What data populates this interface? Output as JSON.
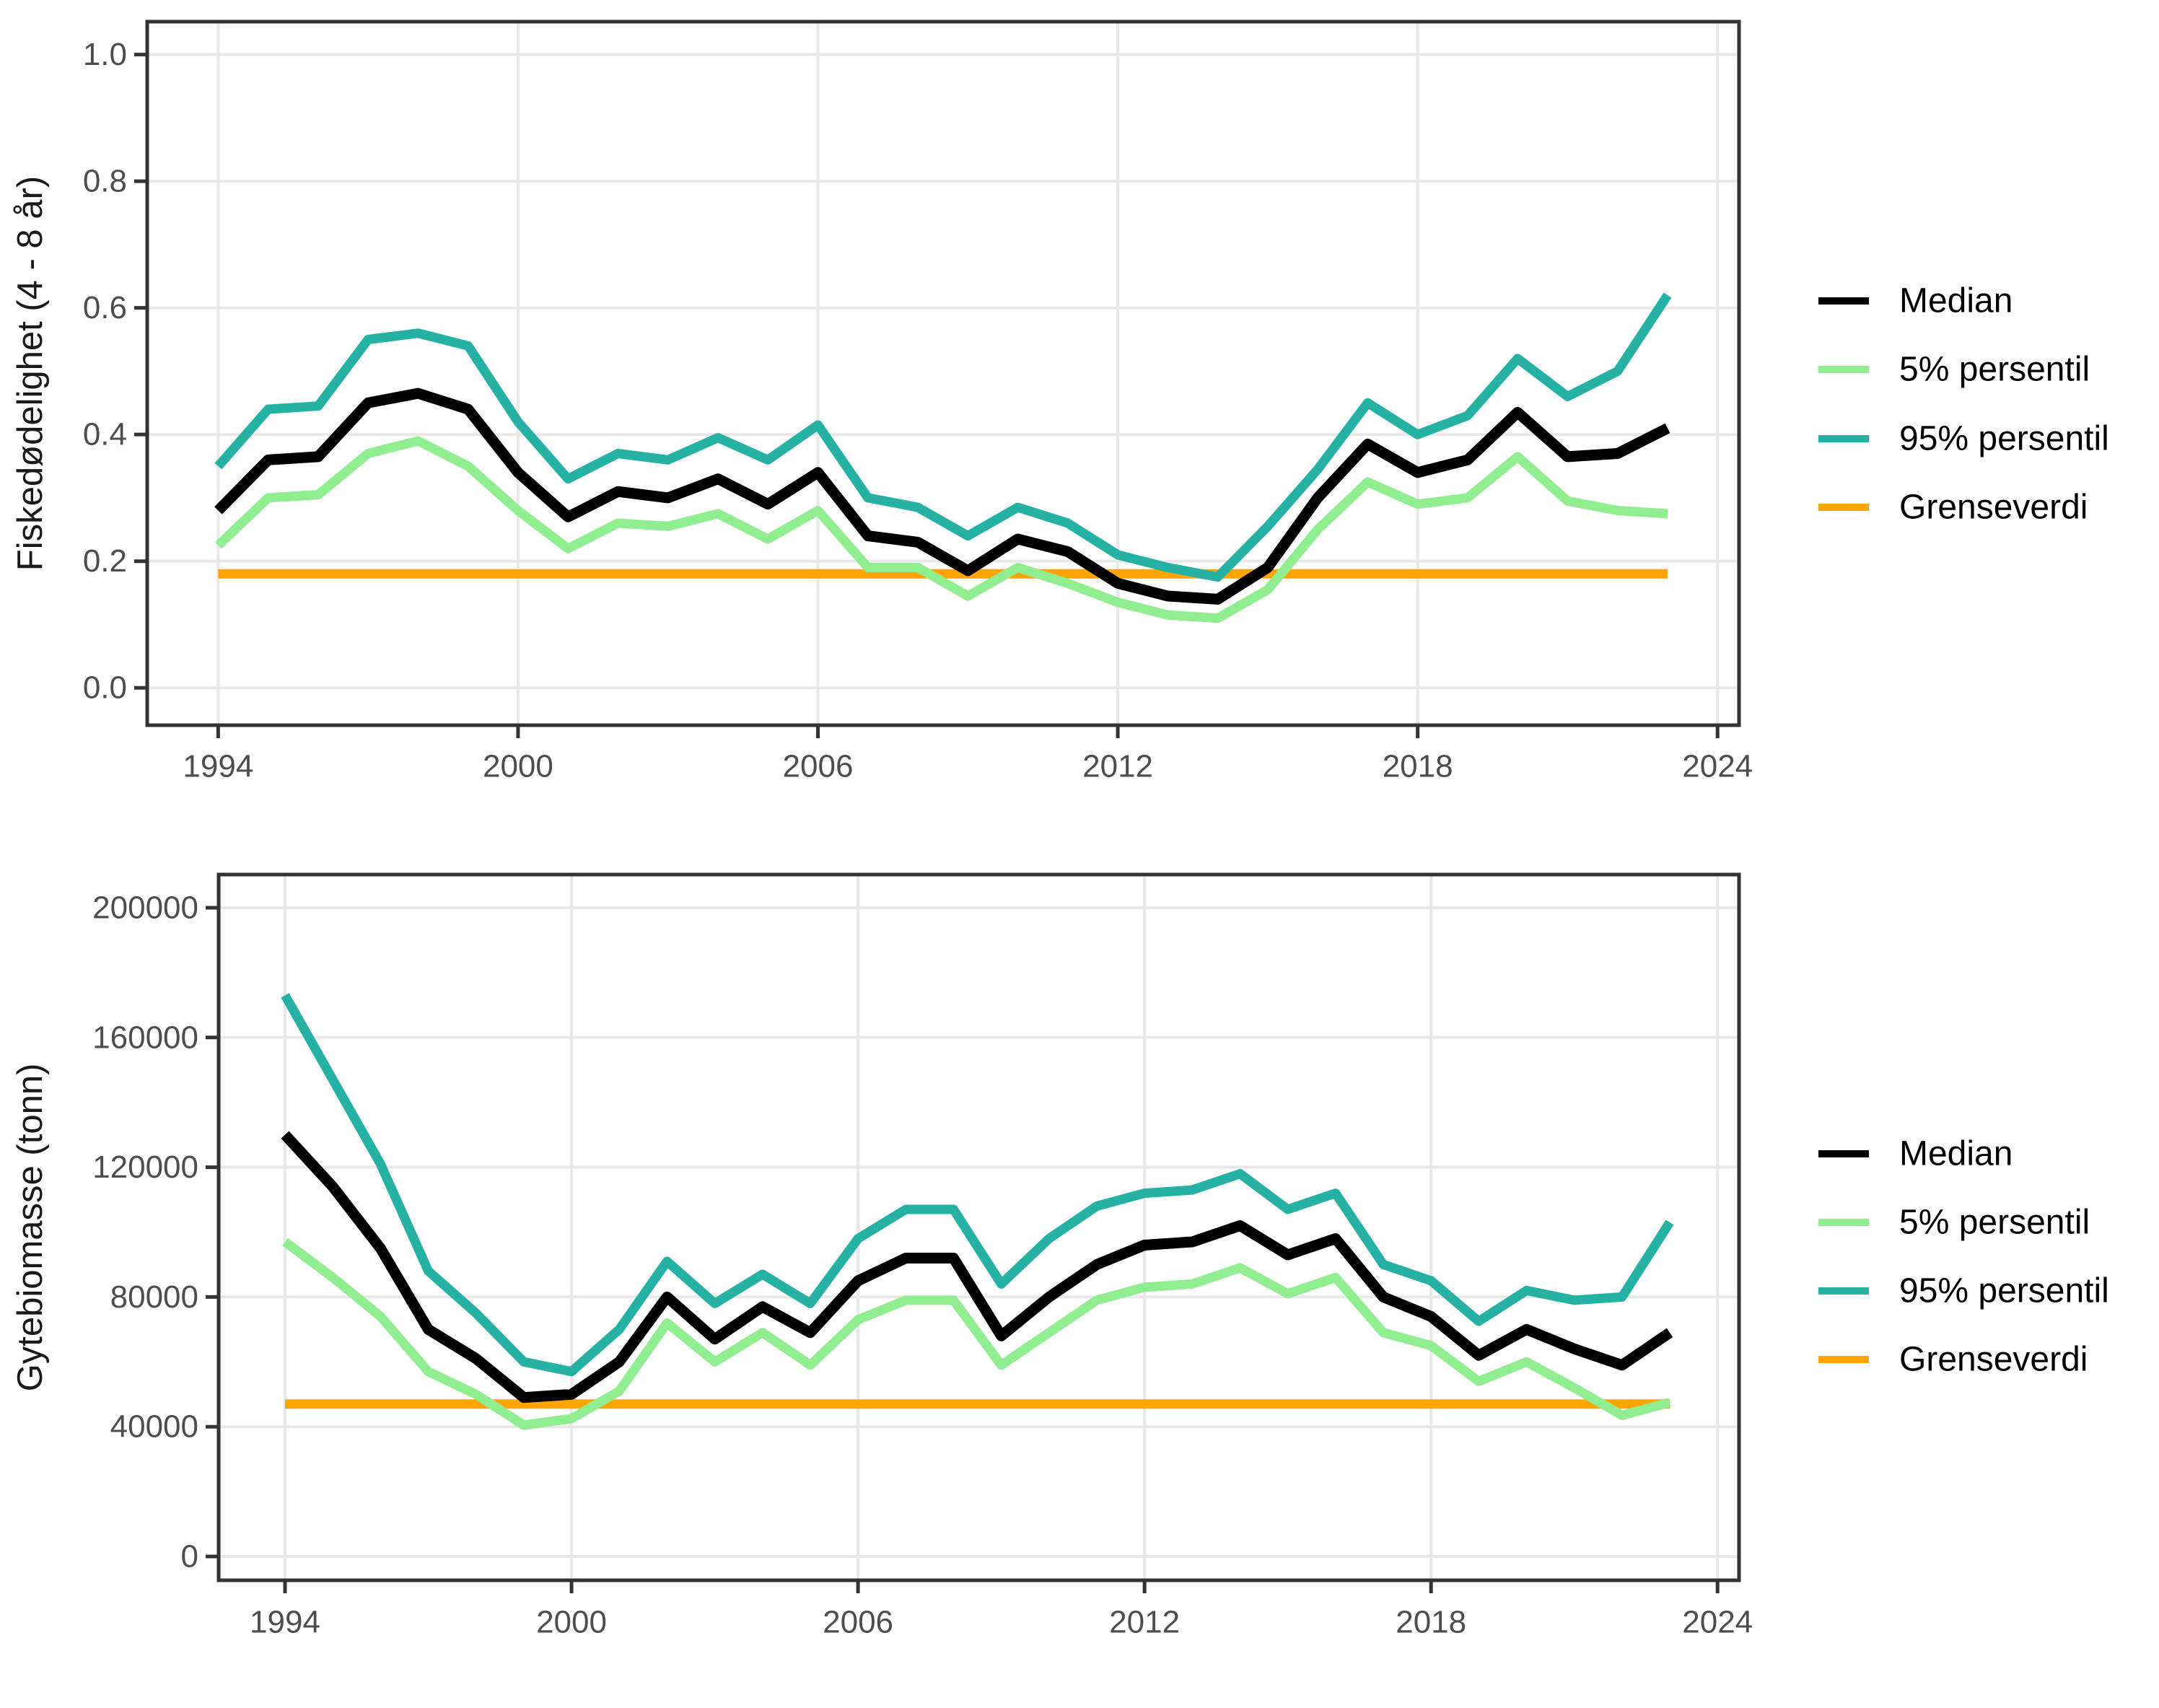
{
  "figure": {
    "background": "#ffffff"
  },
  "chart_data": [
    {
      "type": "line",
      "name": "fiskedodelighet",
      "title": "",
      "xlabel": "",
      "ylabel": "Fiskedødelighet (4 - 8 år)",
      "x": [
        1994,
        1995,
        1996,
        1997,
        1998,
        1999,
        2000,
        2001,
        2002,
        2003,
        2004,
        2005,
        2006,
        2007,
        2008,
        2009,
        2010,
        2011,
        2012,
        2013,
        2014,
        2015,
        2016,
        2017,
        2018,
        2019,
        2020,
        2021,
        2022,
        2023
      ],
      "series": [
        {
          "name": "Median",
          "color": "#000000",
          "width": 15,
          "values": [
            0.28,
            0.36,
            0.365,
            0.45,
            0.465,
            0.44,
            0.34,
            0.27,
            0.31,
            0.3,
            0.33,
            0.29,
            0.34,
            0.24,
            0.23,
            0.185,
            0.235,
            0.215,
            0.165,
            0.145,
            0.14,
            0.19,
            0.3,
            0.385,
            0.34,
            0.36,
            0.435,
            0.365,
            0.37,
            0.41
          ]
        },
        {
          "name": "5% persentil",
          "color": "#90ee90",
          "width": 13,
          "values": [
            0.225,
            0.3,
            0.305,
            0.37,
            0.39,
            0.35,
            0.28,
            0.22,
            0.26,
            0.255,
            0.275,
            0.235,
            0.28,
            0.19,
            0.19,
            0.145,
            0.19,
            0.165,
            0.135,
            0.115,
            0.11,
            0.155,
            0.25,
            0.325,
            0.29,
            0.3,
            0.365,
            0.295,
            0.28,
            0.275
          ]
        },
        {
          "name": "95% persentil",
          "color": "#26b1a5",
          "width": 13,
          "values": [
            0.35,
            0.44,
            0.445,
            0.55,
            0.56,
            0.54,
            0.42,
            0.33,
            0.37,
            0.36,
            0.395,
            0.36,
            0.415,
            0.3,
            0.285,
            0.24,
            0.285,
            0.26,
            0.21,
            0.19,
            0.175,
            0.255,
            0.345,
            0.45,
            0.4,
            0.43,
            0.52,
            0.46,
            0.5,
            0.62
          ]
        },
        {
          "name": "Grenseverdi",
          "color": "#ffa500",
          "width": 13,
          "ref_value": 0.18
        }
      ],
      "xlim": [
        1992.58,
        2024.43
      ],
      "ylim": [
        -0.059,
        1.052
      ],
      "x_ticks": [
        1994,
        2000,
        2006,
        2012,
        2018,
        2024
      ],
      "x_tick_labels": [
        "1994",
        "2000",
        "2006",
        "2012",
        "2018",
        "2024"
      ],
      "y_ticks": [
        0,
        0.2,
        0.4,
        0.6,
        0.8,
        1.0
      ],
      "y_tick_labels": [
        "0.0",
        "0.2",
        "0.4",
        "0.6",
        "0.8",
        "1.0"
      ],
      "grid": "major",
      "legend_position": "right"
    },
    {
      "type": "line",
      "name": "gytebiomasse",
      "title": "",
      "xlabel": "",
      "ylabel": "Gytebiomasse (tonn)",
      "x": [
        1994,
        1995,
        1996,
        1997,
        1998,
        1999,
        2000,
        2001,
        2002,
        2003,
        2004,
        2005,
        2006,
        2007,
        2008,
        2009,
        2010,
        2011,
        2012,
        2013,
        2014,
        2015,
        2016,
        2017,
        2018,
        2019,
        2020,
        2021,
        2022,
        2023
      ],
      "series": [
        {
          "name": "Median",
          "color": "#000000",
          "width": 15,
          "values": [
            130000,
            114000,
            95000,
            70000,
            61000,
            49000,
            50000,
            60000,
            80000,
            67000,
            77000,
            69000,
            85000,
            92000,
            92000,
            68000,
            80000,
            90000,
            96000,
            97000,
            102000,
            93000,
            98000,
            80000,
            74000,
            62000,
            70000,
            64000,
            59000,
            69000
          ]
        },
        {
          "name": "5% persentil",
          "color": "#90ee90",
          "width": 13,
          "values": [
            97000,
            86000,
            74000,
            57000,
            50000,
            40500,
            42500,
            51000,
            72000,
            60000,
            69000,
            59000,
            73000,
            79000,
            79000,
            59000,
            69000,
            79000,
            83000,
            84000,
            89000,
            81000,
            86000,
            69000,
            65000,
            54000,
            60000,
            52000,
            43500,
            47500
          ]
        },
        {
          "name": "95% persentil",
          "color": "#26b1a5",
          "width": 13,
          "values": [
            173000,
            147000,
            121000,
            88000,
            75000,
            60000,
            57000,
            70000,
            91000,
            78000,
            87000,
            78000,
            98000,
            107000,
            107000,
            84000,
            98000,
            108000,
            112000,
            113000,
            118000,
            107000,
            112000,
            90000,
            85000,
            72500,
            82000,
            79000,
            80000,
            103000
          ]
        },
        {
          "name": "Grenseverdi",
          "color": "#ffa500",
          "width": 13,
          "ref_value": 47000
        }
      ],
      "xlim": [
        1992.61,
        2024.45
      ],
      "ylim": [
        -7340,
        210230
      ],
      "x_ticks": [
        1994,
        2000,
        2006,
        2012,
        2018,
        2024
      ],
      "x_tick_labels": [
        "1994",
        "2000",
        "2006",
        "2012",
        "2018",
        "2024"
      ],
      "y_ticks": [
        0,
        40000,
        80000,
        120000,
        160000,
        200000
      ],
      "y_tick_labels": [
        "0",
        "40000",
        "80000",
        "120000",
        "160000",
        "200000"
      ],
      "grid": "major",
      "legend_position": "right"
    }
  ]
}
